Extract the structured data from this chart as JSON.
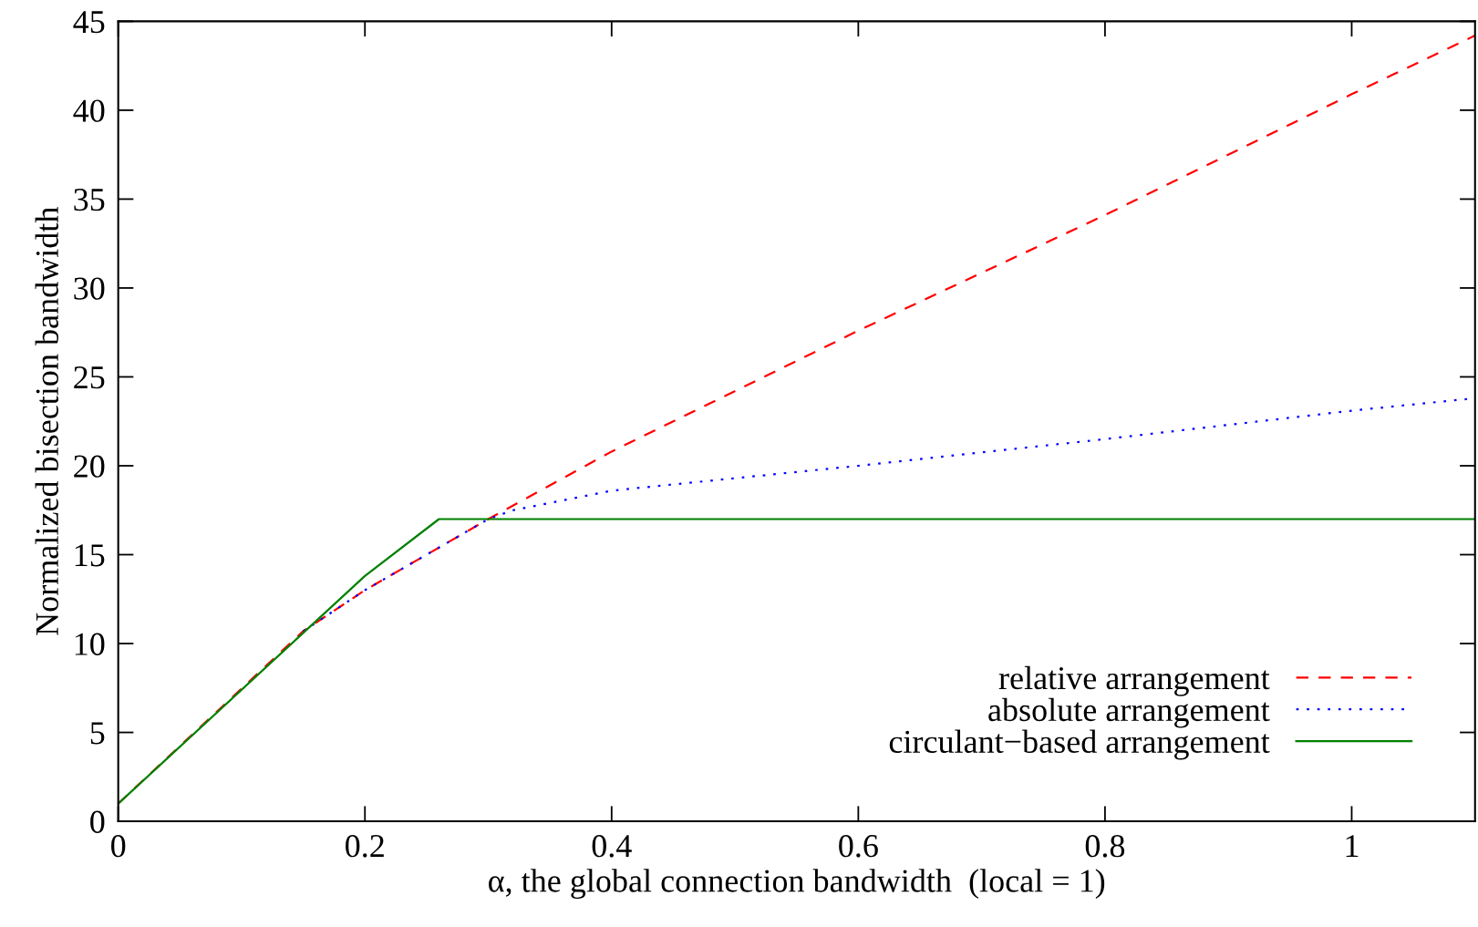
{
  "chart_data": {
    "type": "line",
    "xlabel": "α, the global connection bandwidth  (local = 1)",
    "ylabel": "Normalized bisection bandwidth",
    "xlim": [
      0,
      1.1
    ],
    "xticks": [
      0,
      0.2,
      0.4,
      0.6,
      0.8,
      1
    ],
    "ylim": [
      0,
      45
    ],
    "yticks": [
      0,
      5,
      10,
      15,
      20,
      25,
      30,
      35,
      40,
      45
    ],
    "grid": false,
    "legend": "bottom right",
    "marker": "none",
    "series": [
      {
        "name": "relative arrangement",
        "color": "#ff0000",
        "line_style": "dashed",
        "x": [
          0,
          0.15,
          0.2,
          0.3,
          0.4,
          0.6,
          0.8,
          1.0,
          1.1
        ],
        "values": [
          1,
          10.7,
          13.0,
          17.0,
          20.8,
          27.6,
          34.1,
          40.9,
          44.2
        ]
      },
      {
        "name": "absolute arrangement",
        "color": "#0000ff",
        "line_style": "dotted",
        "x": [
          0.15,
          0.2,
          0.3,
          0.32,
          0.4,
          0.6,
          0.8,
          1.0,
          1.1
        ],
        "values": [
          10.7,
          13.0,
          17.0,
          17.5,
          18.6,
          20.0,
          21.5,
          23.1,
          23.8
        ]
      },
      {
        "name": "circulant−based arrangement",
        "color": "#008000",
        "line_style": "solid",
        "x": [
          0,
          0.2,
          0.26,
          1.1
        ],
        "values": [
          1,
          13.8,
          17.0,
          17.0
        ]
      }
    ]
  }
}
